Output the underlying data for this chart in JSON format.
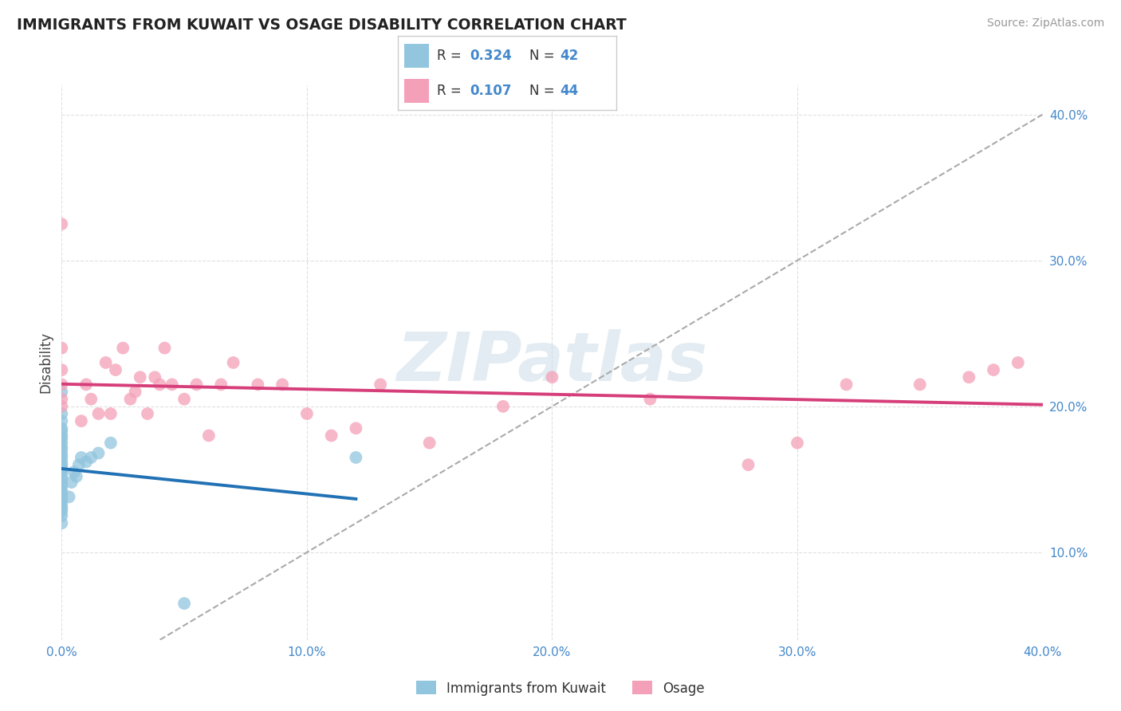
{
  "title": "IMMIGRANTS FROM KUWAIT VS OSAGE DISABILITY CORRELATION CHART",
  "source": "Source: ZipAtlas.com",
  "ylabel": "Disability",
  "watermark": "ZIPatlas",
  "r_kuwait": 0.324,
  "n_kuwait": 42,
  "r_osage": 0.107,
  "n_osage": 44,
  "xlim": [
    0.0,
    0.4
  ],
  "ylim": [
    0.04,
    0.42
  ],
  "xtick_vals": [
    0.0,
    0.1,
    0.2,
    0.3,
    0.4
  ],
  "xtick_labels": [
    "0.0%",
    "10.0%",
    "20.0%",
    "30.0%",
    "40.0%"
  ],
  "ytick_vals": [
    0.1,
    0.2,
    0.3,
    0.4
  ],
  "ytick_labels": [
    "10.0%",
    "20.0%",
    "30.0%",
    "40.0%"
  ],
  "kuwait_color": "#92c5de",
  "osage_color": "#f4a0b8",
  "kuwait_line_color": "#2171b5",
  "osage_line_color": "#d63e7a",
  "dashed_line_color": "#aaaaaa",
  "tick_color": "#4488cc",
  "grid_color": "#e0e0e0",
  "kuwait_x": [
    0.0,
    0.0,
    0.0,
    0.0,
    0.0,
    0.0,
    0.0,
    0.0,
    0.0,
    0.0,
    0.0,
    0.0,
    0.0,
    0.0,
    0.0,
    0.0,
    0.0,
    0.0,
    0.0,
    0.0,
    0.0,
    0.0,
    0.0,
    0.0,
    0.0,
    0.0,
    0.0,
    0.0,
    0.0,
    0.0,
    0.003,
    0.004,
    0.005,
    0.006,
    0.007,
    0.008,
    0.01,
    0.012,
    0.015,
    0.02,
    0.05,
    0.12
  ],
  "kuwait_y": [
    0.12,
    0.125,
    0.128,
    0.13,
    0.132,
    0.135,
    0.137,
    0.14,
    0.142,
    0.145,
    0.147,
    0.15,
    0.152,
    0.155,
    0.157,
    0.158,
    0.16,
    0.162,
    0.165,
    0.167,
    0.17,
    0.172,
    0.175,
    0.178,
    0.18,
    0.183,
    0.185,
    0.19,
    0.195,
    0.21,
    0.138,
    0.148,
    0.155,
    0.152,
    0.16,
    0.165,
    0.162,
    0.165,
    0.168,
    0.175,
    0.065,
    0.165
  ],
  "osage_x": [
    0.0,
    0.0,
    0.0,
    0.0,
    0.0,
    0.0,
    0.008,
    0.01,
    0.012,
    0.015,
    0.018,
    0.02,
    0.022,
    0.025,
    0.028,
    0.03,
    0.032,
    0.035,
    0.038,
    0.04,
    0.042,
    0.045,
    0.05,
    0.055,
    0.06,
    0.065,
    0.07,
    0.08,
    0.09,
    0.1,
    0.11,
    0.12,
    0.13,
    0.15,
    0.18,
    0.2,
    0.24,
    0.28,
    0.3,
    0.32,
    0.35,
    0.37,
    0.38,
    0.39
  ],
  "osage_y": [
    0.2,
    0.205,
    0.215,
    0.225,
    0.24,
    0.325,
    0.19,
    0.215,
    0.205,
    0.195,
    0.23,
    0.195,
    0.225,
    0.24,
    0.205,
    0.21,
    0.22,
    0.195,
    0.22,
    0.215,
    0.24,
    0.215,
    0.205,
    0.215,
    0.18,
    0.215,
    0.23,
    0.215,
    0.215,
    0.195,
    0.18,
    0.185,
    0.215,
    0.175,
    0.2,
    0.22,
    0.205,
    0.16,
    0.175,
    0.215,
    0.215,
    0.22,
    0.225,
    0.23
  ]
}
